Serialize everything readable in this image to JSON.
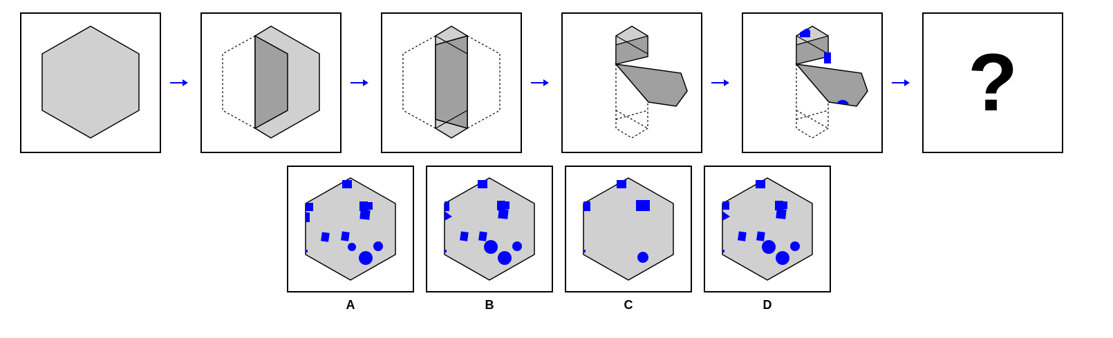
{
  "question_mark": "?",
  "colors": {
    "face": "#d0d0d0",
    "fold": "#a0a0a0",
    "mark": "#0000ff",
    "arrow": "#0000ff",
    "outline": "#000000"
  },
  "options": [
    {
      "label": "A"
    },
    {
      "label": "B"
    },
    {
      "label": "C"
    },
    {
      "label": "D"
    }
  ]
}
